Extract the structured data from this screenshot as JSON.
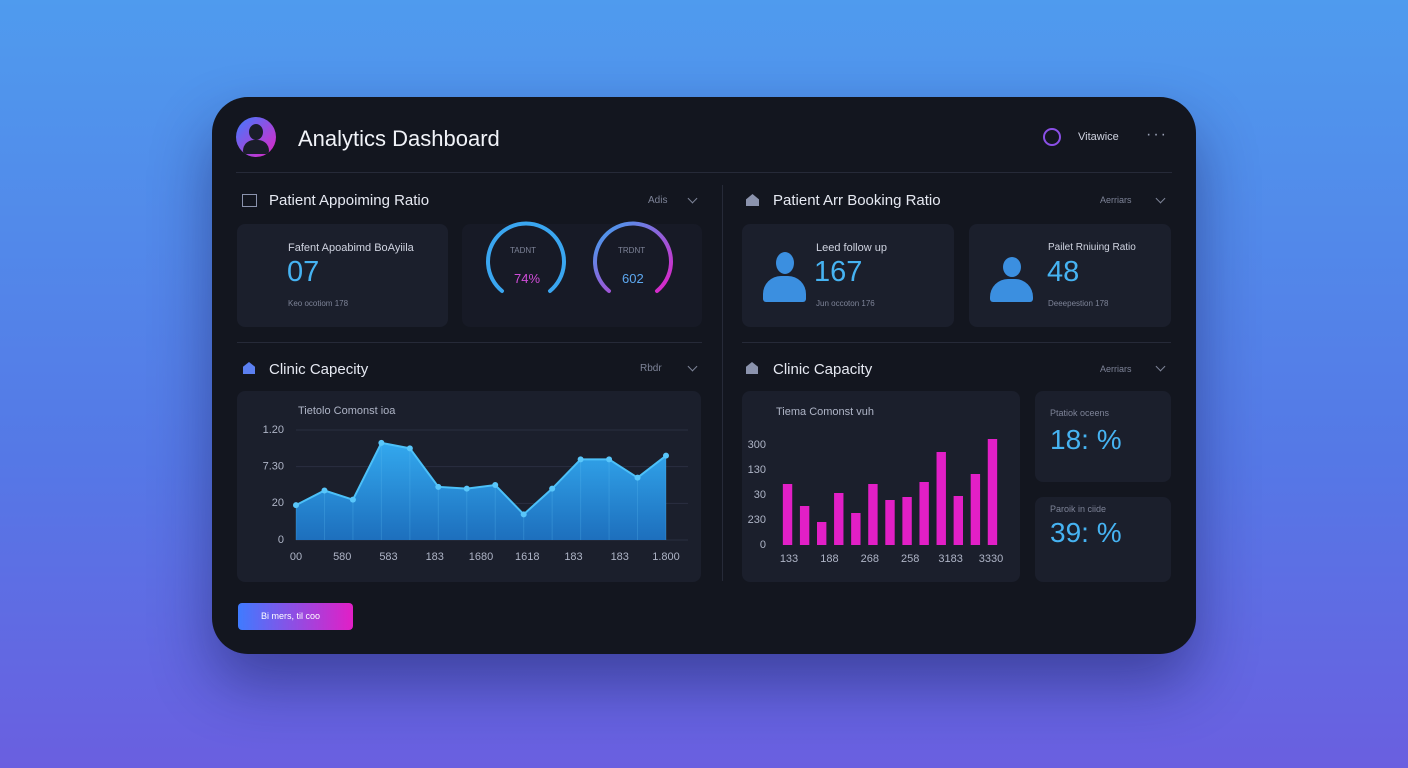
{
  "header": {
    "title": "Analytics Dashboard",
    "user": "Vitawice"
  },
  "appointment_panel": {
    "title": "Patient Appoiming Ratio",
    "filter": "Adis",
    "stat": {
      "label": "Fafent Apoabimd BoAyiila",
      "value": "07",
      "note": "Keo ocotiom 178"
    },
    "gauges": [
      {
        "label": "TADNT",
        "value": "74%"
      },
      {
        "label": "TRDNT",
        "value": "602"
      }
    ]
  },
  "booking_panel": {
    "title": "Patient Arr Booking Ratio",
    "filter": "Aerriars",
    "cards": [
      {
        "label": "Leed follow up",
        "value": "167",
        "note": "Jun occoton 176"
      },
      {
        "label": "Pailet Rniuing Ratio",
        "value": "48",
        "note": "Deeepestion 178"
      }
    ]
  },
  "capacity_panel": {
    "title": "Clinic Capecity",
    "filter": "Rbdr",
    "chart_data": {
      "type": "area",
      "subtitle": "Tietolo Comonst ioa",
      "values": [
        19,
        27,
        22,
        53,
        50,
        29,
        28,
        30,
        14,
        28,
        44,
        44,
        34,
        46
      ],
      "xtick_labels": [
        "00",
        "580",
        "583",
        "183",
        "1680",
        "1618",
        "183",
        "183",
        "1.800"
      ],
      "ylim": [
        0,
        60
      ],
      "yticks": [
        0,
        20,
        {
          "value": 40,
          "label": "7.30"
        },
        {
          "value": 60,
          "label": "1.20"
        }
      ],
      "color": "#2a9be0",
      "grid": true
    }
  },
  "capacity_panel_2": {
    "title": "Clinic Capacity",
    "filter": "Aerriars",
    "chart_data": {
      "type": "bar",
      "subtitle": "Tiema Comonst vuh",
      "values": [
        61,
        39,
        23,
        52,
        32,
        61,
        45,
        48,
        63,
        93,
        49,
        71,
        106
      ],
      "xtick_labels": [
        "133",
        "188",
        "268",
        "258",
        "3183",
        "3330"
      ],
      "ylim": [
        0,
        110
      ],
      "yticks": [
        0,
        {
          "value": 25,
          "label": "230"
        },
        {
          "value": 50,
          "label": "30"
        },
        {
          "value": 75,
          "label": "130"
        },
        {
          "value": 100,
          "label": "300"
        }
      ],
      "color": "#e21fc6",
      "grid": false
    },
    "cards": [
      {
        "label": "Ptatiok oceens",
        "value": "18: %"
      },
      {
        "label": "Paroik in ciide",
        "value": "39: %"
      }
    ]
  },
  "button": "Bi mers, til coo"
}
